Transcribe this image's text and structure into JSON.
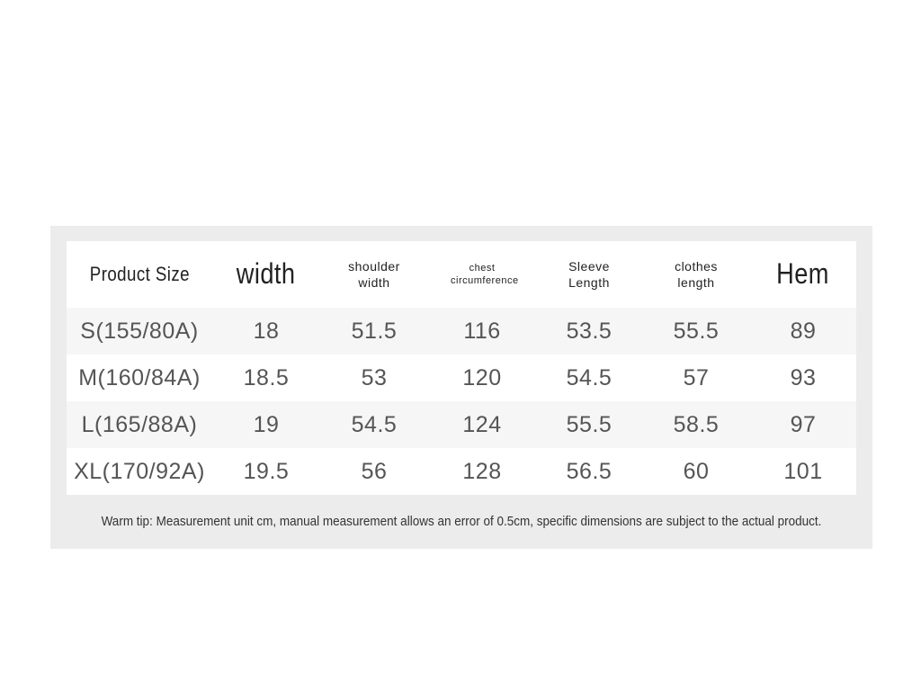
{
  "table": {
    "header": [
      "Product Size",
      "width",
      "shoulder width",
      "chest circumference",
      "Sleeve Length",
      "clothes length",
      "Hem"
    ],
    "rows": [
      [
        "S(155/80A)",
        18,
        51.5,
        116,
        53.5,
        55.5,
        89
      ],
      [
        "M(160/84A)",
        18.5,
        53,
        120,
        54.5,
        57,
        93
      ],
      [
        "L(165/88A)",
        19,
        54.5,
        124,
        55.5,
        58.5,
        97
      ],
      [
        "XL(170/92A)",
        19.5,
        56,
        128,
        56.5,
        60,
        101
      ]
    ]
  },
  "tip": "Warm tip: Measurement unit cm, manual measurement allows an error of 0.5cm, specific dimensions are subject to the actual product."
}
